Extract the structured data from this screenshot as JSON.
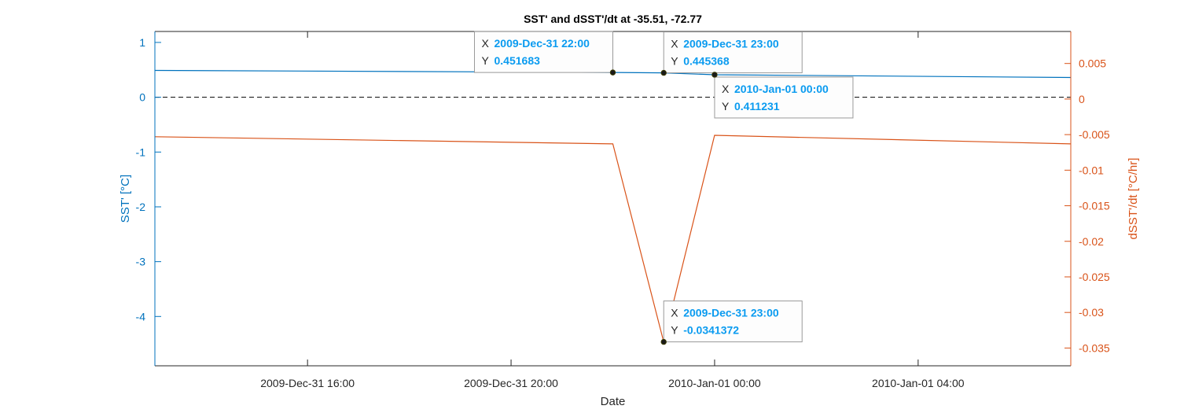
{
  "chart_data": {
    "type": "line",
    "title": "SST' and dSST'/dt at -35.51, -72.77",
    "xlabel": "Date",
    "ylabel_left": "SST' [°C]",
    "ylabel_right": "dSST'/dt [°C/hr]",
    "x_range": [
      "2009-12-31T13:00",
      "2010-01-01T07:00"
    ],
    "x_ticks": [
      {
        "t": "2009-12-31T16:00",
        "label": "2009-Dec-31 16:00"
      },
      {
        "t": "2009-12-31T20:00",
        "label": "2009-Dec-31 20:00"
      },
      {
        "t": "2010-01-01T00:00",
        "label": "2010-Jan-01 00:00"
      },
      {
        "t": "2010-01-01T04:00",
        "label": "2010-Jan-01 04:00"
      }
    ],
    "y_left": {
      "range": [
        -4.9,
        1.2
      ],
      "ticks": [
        1,
        0,
        -1,
        -2,
        -3,
        -4
      ],
      "labels": [
        "1",
        "0",
        "-1",
        "-2",
        "-3",
        "-4"
      ]
    },
    "y_right": {
      "range": [
        -0.0375,
        0.0095
      ],
      "ticks": [
        0.005,
        0,
        -0.005,
        -0.01,
        -0.015,
        -0.02,
        -0.025,
        -0.03,
        -0.035
      ],
      "labels": [
        "0.005",
        "0",
        "-0.005",
        "-0.01",
        "-0.015",
        "-0.02",
        "-0.025",
        "-0.03",
        "-0.035"
      ]
    },
    "grid": false,
    "reference_line": {
      "axis": "left",
      "y": 0,
      "style": "dashed"
    },
    "series": [
      {
        "axis": "left",
        "color": "#0072BD",
        "points": [
          {
            "t": "2009-12-31T13:00",
            "y": 0.49
          },
          {
            "t": "2009-12-31T22:00",
            "y": 0.451683
          },
          {
            "t": "2009-12-31T23:00",
            "y": 0.445368
          },
          {
            "t": "2010-01-01T00:00",
            "y": 0.411231
          },
          {
            "t": "2010-01-01T07:00",
            "y": 0.36
          }
        ]
      },
      {
        "axis": "right",
        "color": "#D95319",
        "points": [
          {
            "t": "2009-12-31T13:00",
            "y": -0.0053
          },
          {
            "t": "2009-12-31T22:00",
            "y": -0.0063
          },
          {
            "t": "2009-12-31T23:00",
            "y": -0.0341372
          },
          {
            "t": "2010-01-01T00:00",
            "y": -0.0051
          },
          {
            "t": "2010-01-01T07:00",
            "y": -0.0063
          }
        ]
      }
    ],
    "datatips": [
      {
        "t": "2009-12-31T22:00",
        "axis": "left",
        "y": 0.451683,
        "x_label": "2009-Dec-31 22:00",
        "y_label": "0.451683",
        "placement": "above-left"
      },
      {
        "t": "2009-12-31T23:00",
        "axis": "left",
        "y": 0.445368,
        "x_label": "2009-Dec-31 23:00",
        "y_label": "0.445368",
        "placement": "above-right"
      },
      {
        "t": "2010-01-01T00:00",
        "axis": "left",
        "y": 0.411231,
        "x_label": "2010-Jan-01 00:00",
        "y_label": "0.411231",
        "placement": "below-right"
      },
      {
        "t": "2009-12-31T23:00",
        "axis": "right",
        "y": -0.0341372,
        "x_label": "2009-Dec-31 23:00",
        "y_label": "-0.0341372",
        "placement": "above-right"
      }
    ],
    "tip_keys": {
      "x": "X",
      "y": "Y"
    }
  }
}
